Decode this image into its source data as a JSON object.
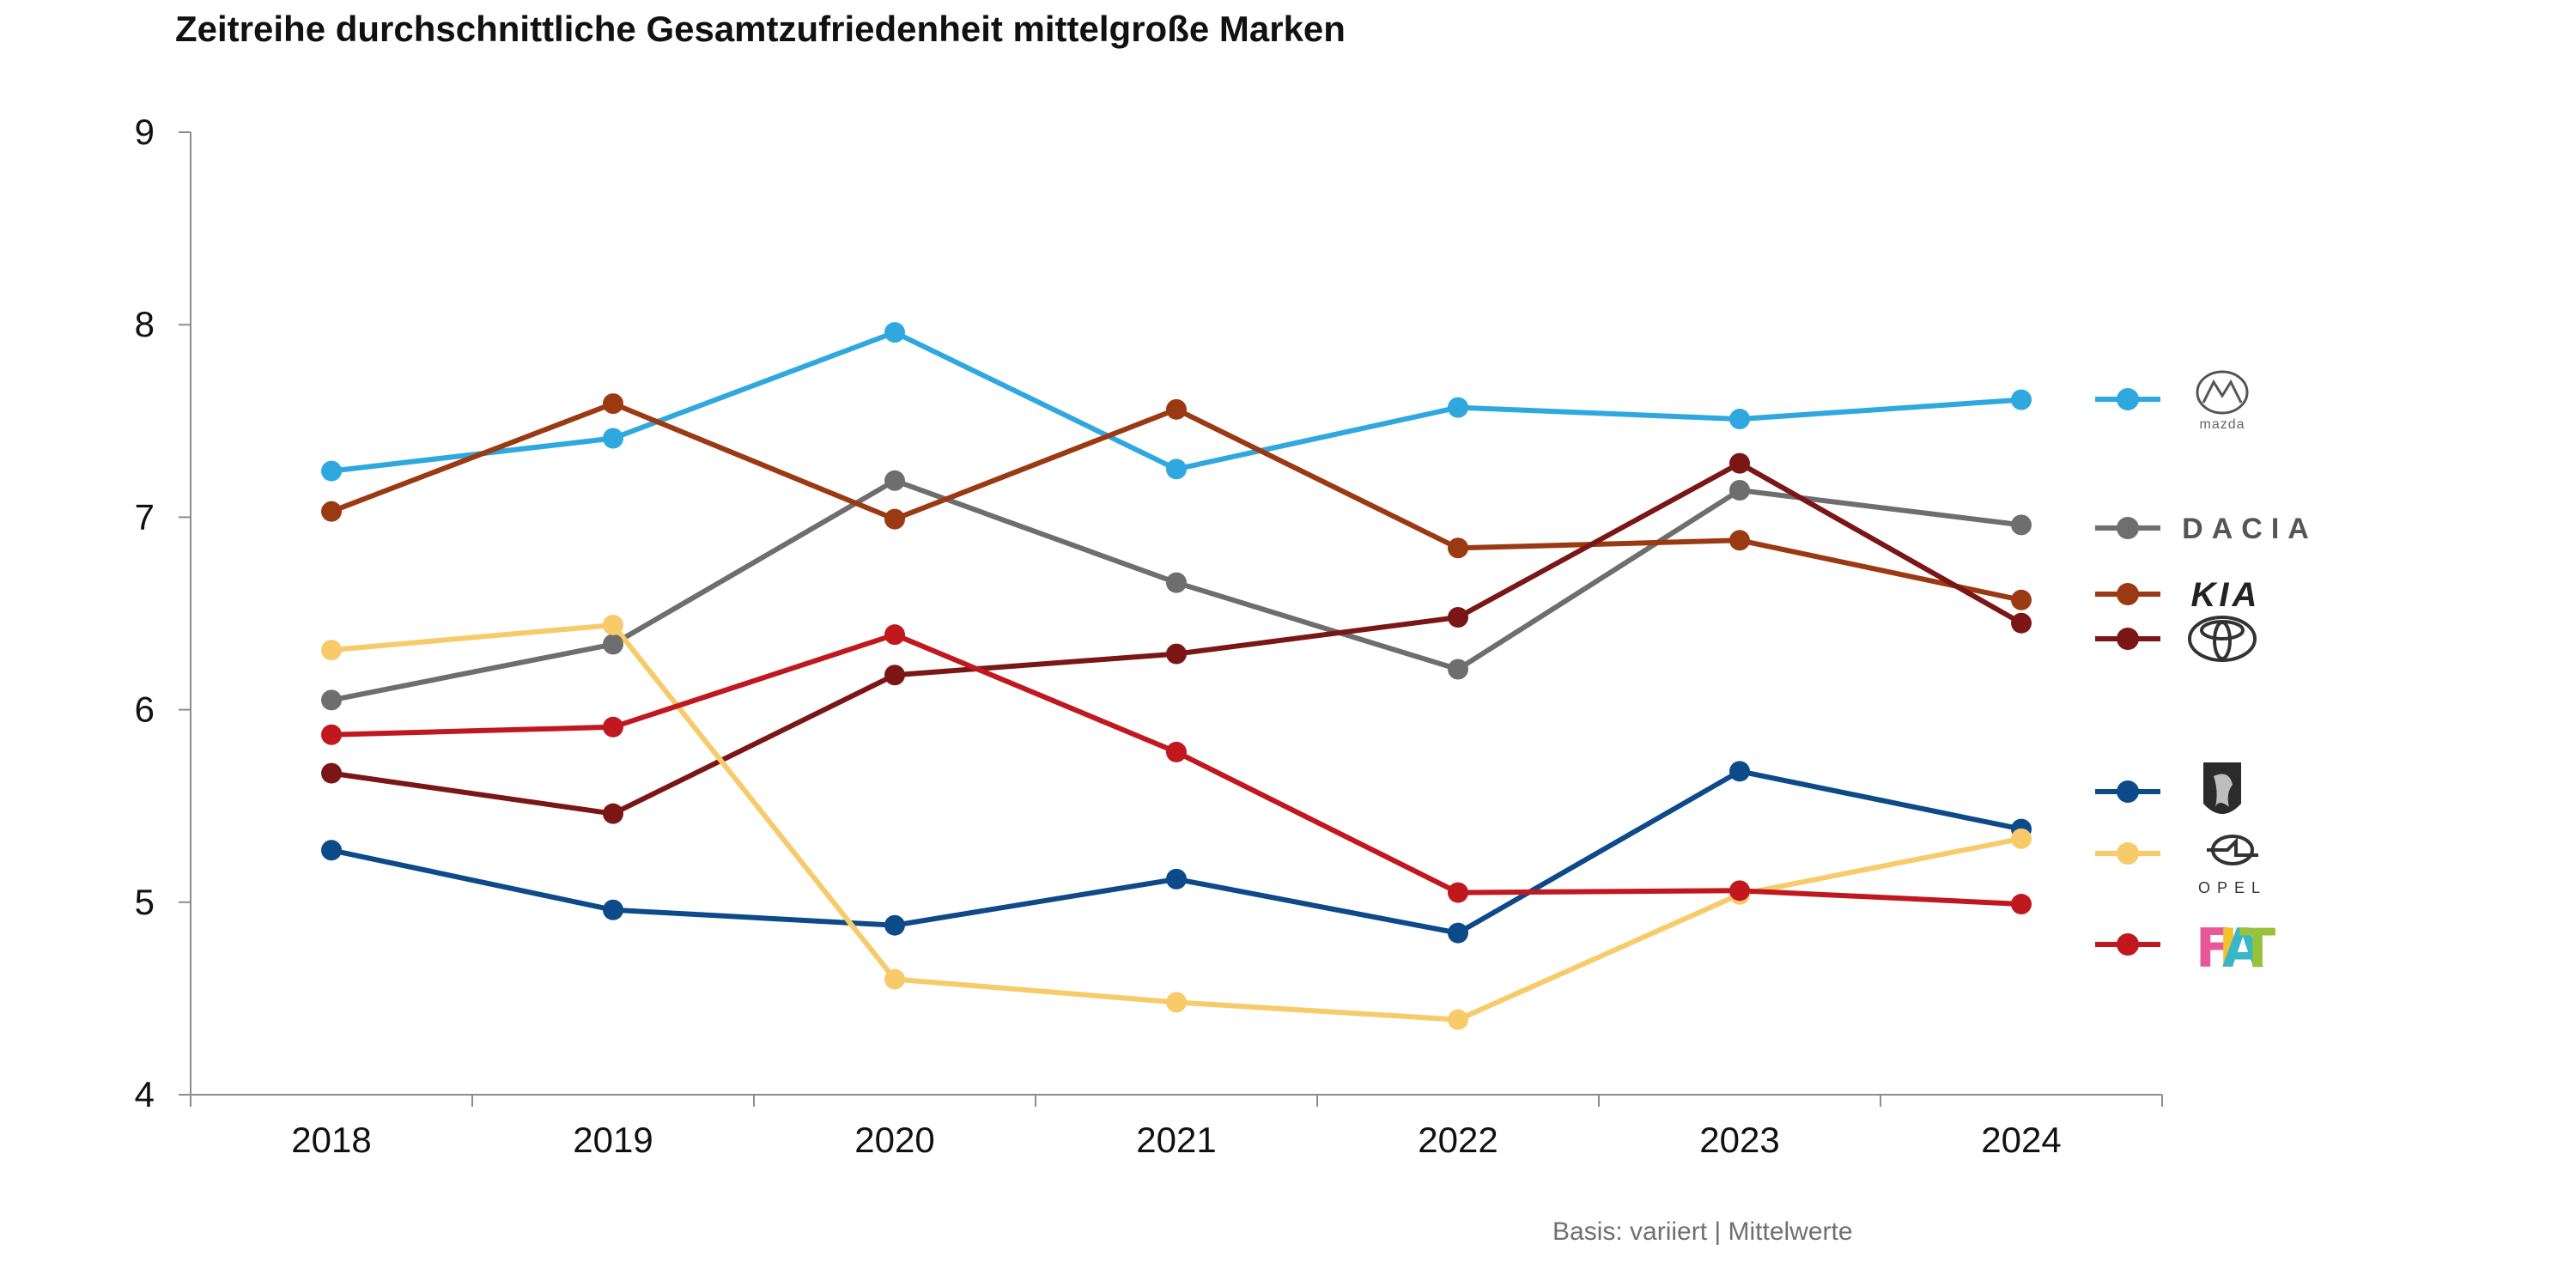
{
  "title": "Zeitreihe durchschnittliche Gesamtzufriedenheit mittelgroße Marken",
  "footnote": "Basis: variiert | Mittelwerte",
  "chart_data": {
    "type": "line",
    "title": "Zeitreihe durchschnittliche Gesamtzufriedenheit mittelgroße Marken",
    "xlabel": "",
    "ylabel": "",
    "x": [
      "2018",
      "2019",
      "2020",
      "2021",
      "2022",
      "2023",
      "2024"
    ],
    "ylim": [
      4,
      9
    ],
    "yticks": [
      "4",
      "5",
      "6",
      "7",
      "8",
      "9"
    ],
    "grid": false,
    "legend_position": "right",
    "series": [
      {
        "name": "mazda",
        "legend_logo": "mazda-logo",
        "color": "#2ea8df",
        "values": [
          7.24,
          7.41,
          7.96,
          7.25,
          7.57,
          7.51,
          7.61
        ]
      },
      {
        "name": "DACIA",
        "legend_logo": "dacia-logo",
        "color": "#6e6e6e",
        "values": [
          6.05,
          6.34,
          7.19,
          6.66,
          6.21,
          7.14,
          6.96
        ]
      },
      {
        "name": "KIA",
        "legend_logo": "kia-logo",
        "color": "#9b3a12",
        "values": [
          7.03,
          7.59,
          6.99,
          7.56,
          6.84,
          6.88,
          6.57
        ]
      },
      {
        "name": "Toyota",
        "legend_logo": "toyota-logo",
        "color": "#7b1616",
        "values": [
          5.67,
          5.46,
          6.18,
          6.29,
          6.48,
          7.28,
          6.45
        ]
      },
      {
        "name": "Peugeot",
        "legend_logo": "peugeot-logo",
        "color": "#0d4a8a",
        "values": [
          5.27,
          4.96,
          4.88,
          5.12,
          4.84,
          5.68,
          5.38
        ]
      },
      {
        "name": "OPEL",
        "legend_logo": "opel-logo",
        "color": "#f7cb6a",
        "values": [
          6.31,
          6.44,
          4.6,
          4.48,
          4.39,
          5.04,
          5.33
        ]
      },
      {
        "name": "FIAT",
        "legend_logo": "fiat-logo",
        "color": "#c0181e",
        "values": [
          5.87,
          5.91,
          6.39,
          5.78,
          5.05,
          5.06,
          4.99
        ]
      }
    ],
    "legend_logo_text": {
      "mazda": "mazda",
      "dacia": "DACIA",
      "kia": "KIA",
      "opel": "OPEL",
      "fiat": "FIAT"
    }
  }
}
